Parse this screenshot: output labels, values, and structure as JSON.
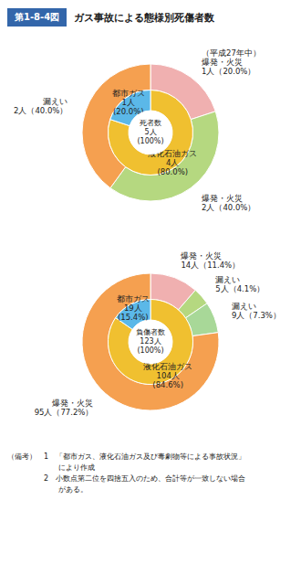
{
  "title": "ガス事故による態様別死傷者数",
  "subtitle": "第1-8-4図",
  "annotations": [
    "（備考）　1　「都市ガス、液化石油ガス及び毒劇物等による事故状況」",
    "　　　　　　　により作成",
    "　　　　　2　小数点第二位を四捨五入のため、合計等が一致しない場合",
    "　　　　　　　がある。"
  ],
  "chart_data": [
    {
      "type": "pie",
      "title": "死者数\n5人\n(100%)",
      "series": [
        {
          "values": [
            80.0,
            20.0
          ],
          "colors": [
            "#f0c030",
            "#5bb8e8"
          ],
          "value_labels": [
            "液化石油ガス\n4人\n(80.0%)",
            "都市ガス\n1人\n(20.0%)"
          ]
        },
        {
          "values": [
            20.0,
            40.0,
            40.0
          ],
          "colors": [
            "#f0b0b0",
            "#b5d880",
            "#f5a050"
          ],
          "value_labels": [
            "（平成27年中）\n爆発・火災\n1人（20.0%）",
            "爆発・火災\n2人（40.0%）",
            "漏えい\n2人（40.0%）"
          ]
        }
      ]
    },
    {
      "type": "pie",
      "title": "負傷者数\n123人\n(100%)",
      "series": [
        {
          "values": [
            84.6,
            15.4
          ],
          "colors": [
            "#f0c030",
            "#5bb8e8"
          ],
          "value_labels": [
            "液化石油ガス\n104人\n(84.6%)",
            "都市ガス\n19人\n(15.4%)"
          ]
        },
        {
          "values": [
            11.4,
            4.1,
            7.3,
            77.2
          ],
          "colors": [
            "#f0b0b0",
            "#b5d880",
            "#a8d898",
            "#f5a050"
          ],
          "value_labels": [
            "爆発・火災\n14人（11.4%）",
            "漏えい\n5人（4.1%）",
            "漏えい\n9人（7.3%）",
            "爆発・火災\n95人（77.2%）"
          ]
        }
      ]
    }
  ]
}
